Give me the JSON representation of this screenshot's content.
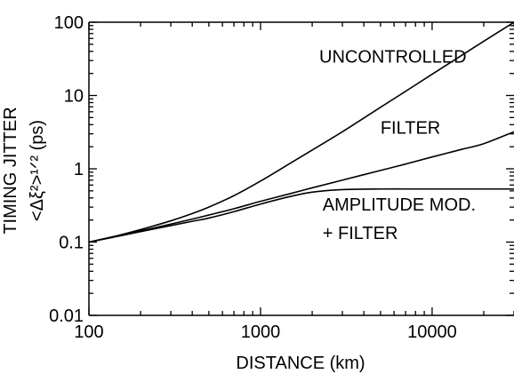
{
  "chart_data": {
    "type": "line",
    "xscale": "log",
    "yscale": "log",
    "xlim": [
      100,
      30000
    ],
    "ylim": [
      0.01,
      100
    ],
    "grid": false,
    "xlabel": "DISTANCE (km)",
    "ylabel_line1": "TIMING JITTER",
    "ylabel_line2": "<Δξ²>¹ᐟ² (ps)",
    "x_ticks": [
      100,
      1000,
      10000
    ],
    "x_tick_labels": [
      "100",
      "1000",
      "10000"
    ],
    "y_ticks": [
      0.01,
      0.1,
      1,
      10,
      100
    ],
    "y_tick_labels": [
      "0.01",
      "0.1",
      "1",
      "10",
      "100"
    ],
    "series": [
      {
        "name": "UNCONTROLLED",
        "x": [
          100,
          150,
          200,
          300,
          400,
          500,
          700,
          1000,
          1500,
          2000,
          3000,
          5000,
          7000,
          10000,
          15000,
          20000,
          30000
        ],
        "y": [
          0.1,
          0.124,
          0.148,
          0.195,
          0.245,
          0.3,
          0.43,
          0.68,
          1.2,
          1.8,
          3.2,
          6.9,
          11.4,
          19.5,
          35.8,
          55.0,
          100.0
        ]
      },
      {
        "name": "FILTER",
        "x": [
          100,
          150,
          200,
          300,
          400,
          500,
          700,
          1000,
          1500,
          2000,
          3000,
          5000,
          7000,
          10000,
          15000,
          20000,
          30000
        ],
        "y": [
          0.1,
          0.122,
          0.142,
          0.176,
          0.206,
          0.234,
          0.285,
          0.36,
          0.46,
          0.55,
          0.7,
          0.95,
          1.16,
          1.45,
          1.85,
          2.2,
          3.2
        ]
      },
      {
        "name": "AMPLITUDE MOD. + FILTER",
        "x": [
          100,
          150,
          200,
          300,
          400,
          500,
          700,
          1000,
          1500,
          2000,
          3000,
          5000,
          7000,
          10000,
          15000,
          20000,
          30000
        ],
        "y": [
          0.1,
          0.121,
          0.139,
          0.168,
          0.192,
          0.213,
          0.26,
          0.33,
          0.42,
          0.48,
          0.52,
          0.53,
          0.53,
          0.53,
          0.53,
          0.53,
          0.53
        ]
      }
    ],
    "annotations": [
      {
        "text": "UNCONTROLLED",
        "x": 2200,
        "y": 28
      },
      {
        "text": "FILTER",
        "x": 5000,
        "y": 3.0
      },
      {
        "text": "AMPLITUDE MOD.",
        "x": 2300,
        "y": 0.27
      },
      {
        "text": "+ FILTER",
        "x": 2300,
        "y": 0.11
      }
    ]
  }
}
